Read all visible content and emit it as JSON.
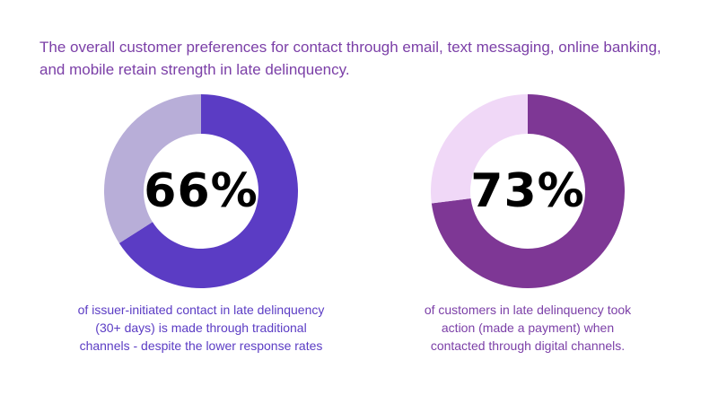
{
  "headline": "The overall customer preferences for contact through email, text messaging, online banking,\nand mobile retain strength in late delinquency.",
  "chart_data": [
    {
      "type": "pie",
      "center_label": "66%",
      "values": [
        66,
        34
      ],
      "colors": [
        "#5b3cc4",
        "#b8aed8"
      ],
      "caption": "of issuer-initiated contact in late delinquency\n(30+ days) is made through traditional\nchannels - despite the lower response rates"
    },
    {
      "type": "pie",
      "center_label": "73%",
      "values": [
        73,
        27
      ],
      "colors": [
        "#7e3795",
        "#f0d8f7"
      ],
      "caption": "of customers in late delinquency took\naction (made a payment) when\ncontacted through digital channels."
    }
  ]
}
